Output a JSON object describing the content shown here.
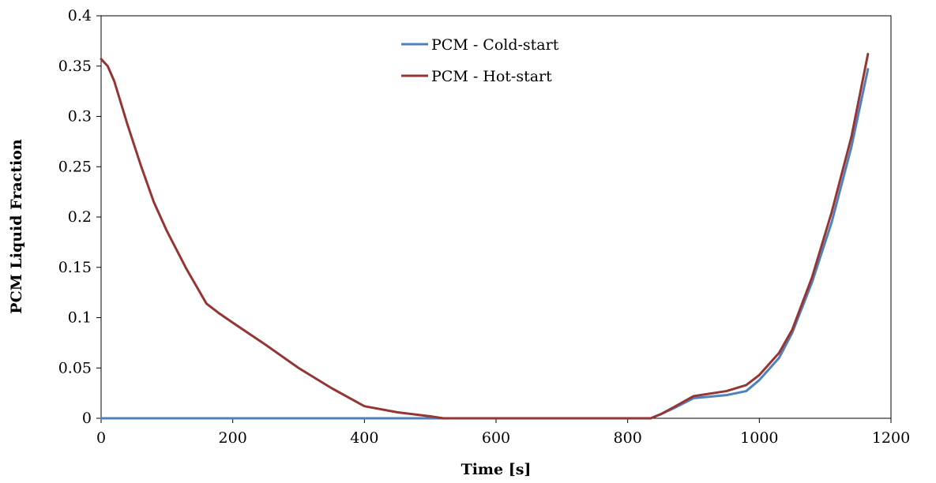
{
  "chart_data": {
    "type": "line",
    "title": "",
    "xlabel": "Time [s]",
    "ylabel": "PCM Liquid Fraction",
    "xlim": [
      0,
      1200
    ],
    "ylim": [
      0,
      0.4
    ],
    "xticks": [
      0,
      200,
      400,
      600,
      800,
      1000,
      1200
    ],
    "yticks": [
      0,
      0.05,
      0.1,
      0.15,
      0.2,
      0.25,
      0.3,
      0.35,
      0.4
    ],
    "xtick_labels": [
      "0",
      "200",
      "400",
      "600",
      "800",
      "1000",
      "1200"
    ],
    "ytick_labels": [
      "0",
      "0.05",
      "0.1",
      "0.15",
      "0.2",
      "0.25",
      "0.3",
      "0.35",
      "0.4"
    ],
    "grid": false,
    "legend": "top-center",
    "series": [
      {
        "name": "PCM - Cold-start",
        "color": "#4F81BD",
        "x": [
          0,
          100,
          200,
          300,
          400,
          500,
          600,
          700,
          800,
          835,
          850,
          870,
          900,
          950,
          980,
          1000,
          1030,
          1050,
          1080,
          1110,
          1140,
          1165
        ],
        "y": [
          0,
          0,
          0,
          0,
          0,
          0,
          0,
          0,
          0,
          0,
          0.004,
          0.01,
          0.02,
          0.023,
          0.027,
          0.038,
          0.06,
          0.085,
          0.135,
          0.195,
          0.27,
          0.347
        ]
      },
      {
        "name": "PCM - Hot-start",
        "color": "#943634",
        "x": [
          0,
          10,
          20,
          40,
          60,
          80,
          100,
          130,
          160,
          180,
          200,
          250,
          300,
          350,
          400,
          450,
          500,
          520,
          600,
          700,
          800,
          835,
          850,
          870,
          900,
          950,
          980,
          1000,
          1030,
          1050,
          1080,
          1110,
          1140,
          1165
        ],
        "y": [
          0.357,
          0.35,
          0.335,
          0.292,
          0.252,
          0.215,
          0.186,
          0.148,
          0.114,
          0.104,
          0.095,
          0.073,
          0.05,
          0.03,
          0.012,
          0.006,
          0.002,
          0,
          0,
          0,
          0,
          0,
          0.004,
          0.011,
          0.022,
          0.027,
          0.033,
          0.043,
          0.065,
          0.088,
          0.14,
          0.205,
          0.28,
          0.362
        ]
      }
    ]
  }
}
